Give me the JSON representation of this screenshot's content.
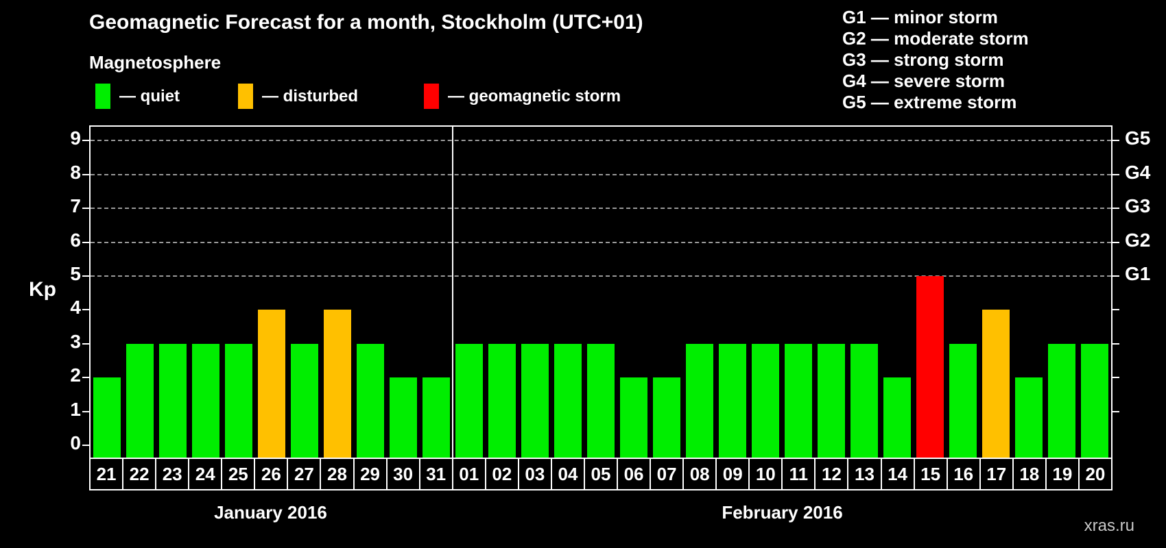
{
  "title": "Geomagnetic Forecast for a month, Stockholm (UTC+01)",
  "legend": {
    "heading": "Magnetosphere",
    "items": [
      {
        "label": "— quiet",
        "status": "quiet",
        "color": "#00ee00"
      },
      {
        "label": "— disturbed",
        "status": "disturbed",
        "color": "#ffc000"
      },
      {
        "label": "— geomagnetic storm",
        "status": "storm",
        "color": "#ff0000"
      }
    ]
  },
  "g_scale_legend": [
    "G1 — minor storm",
    "G2 — moderate storm",
    "G3 — strong storm",
    "G4 — severe storm",
    "G5 — extreme storm"
  ],
  "watermark": "xras.ru",
  "chart_data": {
    "type": "bar",
    "title": "Geomagnetic Forecast for a month, Stockholm (UTC+01)",
    "xlabel": "",
    "ylabel": "Kp",
    "ylim": [
      0,
      9.4
    ],
    "yticks": [
      0,
      1,
      2,
      3,
      4,
      5,
      6,
      7,
      8,
      9
    ],
    "grid_levels": [
      5,
      6,
      7,
      8,
      9
    ],
    "right_ticks": [
      1,
      2,
      3,
      4,
      5,
      6,
      7,
      8,
      9
    ],
    "g_labels": [
      {
        "label": "G1",
        "kp": 5
      },
      {
        "label": "G2",
        "kp": 6
      },
      {
        "label": "G3",
        "kp": 7
      },
      {
        "label": "G4",
        "kp": 8
      },
      {
        "label": "G5",
        "kp": 9
      }
    ],
    "status_colors": {
      "quiet": "#00ee00",
      "disturbed": "#ffc000",
      "storm": "#ff0000"
    },
    "legend_position": "top-left",
    "grid": "dashed horizontal, Kp 5-9 only",
    "months": [
      {
        "label": "January 2016",
        "days": [
          {
            "day": "21",
            "kp": 2,
            "status": "quiet"
          },
          {
            "day": "22",
            "kp": 3,
            "status": "quiet"
          },
          {
            "day": "23",
            "kp": 3,
            "status": "quiet"
          },
          {
            "day": "24",
            "kp": 3,
            "status": "quiet"
          },
          {
            "day": "25",
            "kp": 3,
            "status": "quiet"
          },
          {
            "day": "26",
            "kp": 4,
            "status": "disturbed"
          },
          {
            "day": "27",
            "kp": 3,
            "status": "quiet"
          },
          {
            "day": "28",
            "kp": 4,
            "status": "disturbed"
          },
          {
            "day": "29",
            "kp": 3,
            "status": "quiet"
          },
          {
            "day": "30",
            "kp": 2,
            "status": "quiet"
          },
          {
            "day": "31",
            "kp": 2,
            "status": "quiet"
          }
        ]
      },
      {
        "label": "February 2016",
        "days": [
          {
            "day": "01",
            "kp": 3,
            "status": "quiet"
          },
          {
            "day": "02",
            "kp": 3,
            "status": "quiet"
          },
          {
            "day": "03",
            "kp": 3,
            "status": "quiet"
          },
          {
            "day": "04",
            "kp": 3,
            "status": "quiet"
          },
          {
            "day": "05",
            "kp": 3,
            "status": "quiet"
          },
          {
            "day": "06",
            "kp": 2,
            "status": "quiet"
          },
          {
            "day": "07",
            "kp": 2,
            "status": "quiet"
          },
          {
            "day": "08",
            "kp": 3,
            "status": "quiet"
          },
          {
            "day": "09",
            "kp": 3,
            "status": "quiet"
          },
          {
            "day": "10",
            "kp": 3,
            "status": "quiet"
          },
          {
            "day": "11",
            "kp": 3,
            "status": "quiet"
          },
          {
            "day": "12",
            "kp": 3,
            "status": "quiet"
          },
          {
            "day": "13",
            "kp": 3,
            "status": "quiet"
          },
          {
            "day": "14",
            "kp": 2,
            "status": "quiet"
          },
          {
            "day": "15",
            "kp": 5,
            "status": "storm"
          },
          {
            "day": "16",
            "kp": 3,
            "status": "quiet"
          },
          {
            "day": "17",
            "kp": 4,
            "status": "disturbed"
          },
          {
            "day": "18",
            "kp": 2,
            "status": "quiet"
          },
          {
            "day": "19",
            "kp": 3,
            "status": "quiet"
          },
          {
            "day": "20",
            "kp": 3,
            "status": "quiet"
          }
        ]
      }
    ]
  }
}
